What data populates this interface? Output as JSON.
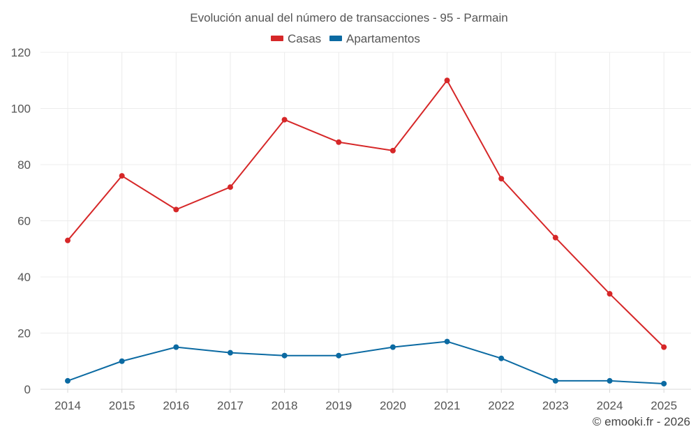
{
  "chart_data": {
    "type": "line",
    "title": "Evolución anual del número de transacciones - 95 - Parmain",
    "xlabel": "",
    "ylabel": "",
    "categories": [
      "2014",
      "2015",
      "2016",
      "2017",
      "2018",
      "2019",
      "2020",
      "2021",
      "2022",
      "2023",
      "2024",
      "2025"
    ],
    "series": [
      {
        "name": "Casas",
        "color": "#d62728",
        "values": [
          53,
          76,
          64,
          72,
          96,
          88,
          85,
          110,
          75,
          54,
          34,
          15
        ]
      },
      {
        "name": "Apartamentos",
        "color": "#0b6aa2",
        "values": [
          3,
          10,
          15,
          13,
          12,
          12,
          15,
          17,
          11,
          3,
          3,
          2
        ]
      }
    ],
    "ylim": [
      0,
      120
    ],
    "yticks": [
      "0",
      "20",
      "40",
      "60",
      "80",
      "100",
      "120"
    ],
    "grid": true,
    "legend": "top-center"
  },
  "credit": "© emooki.fr - 2026"
}
